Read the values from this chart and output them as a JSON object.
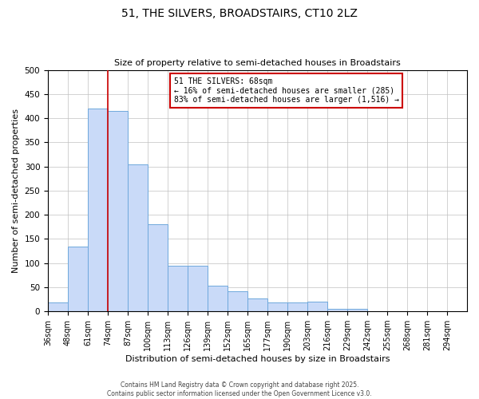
{
  "title": "51, THE SILVERS, BROADSTAIRS, CT10 2LZ",
  "subtitle": "Size of property relative to semi-detached houses in Broadstairs",
  "xlabel": "Distribution of semi-detached houses by size in Broadstairs",
  "ylabel": "Number of semi-detached properties",
  "bin_labels": [
    "36sqm",
    "48sqm",
    "61sqm",
    "74sqm",
    "87sqm",
    "100sqm",
    "113sqm",
    "126sqm",
    "139sqm",
    "152sqm",
    "165sqm",
    "177sqm",
    "190sqm",
    "203sqm",
    "216sqm",
    "229sqm",
    "242sqm",
    "255sqm",
    "268sqm",
    "281sqm",
    "294sqm"
  ],
  "bar_values": [
    18,
    135,
    420,
    415,
    305,
    180,
    95,
    95,
    53,
    42,
    27,
    18,
    18,
    20,
    6,
    6,
    0,
    0,
    0,
    0,
    0
  ],
  "bar_color": "#c9daf8",
  "bar_edge_color": "#6fa8dc",
  "vline_color": "#cc0000",
  "vline_x_bin_index": 2,
  "pct_smaller": 16,
  "pct_larger": 83,
  "count_smaller": 285,
  "count_larger": 1516,
  "annotation_box_color": "#ffffff",
  "annotation_box_edge": "#cc0000",
  "ylim": [
    0,
    500
  ],
  "n_bins": 21,
  "footer_line1": "Contains HM Land Registry data © Crown copyright and database right 2025.",
  "footer_line2": "Contains public sector information licensed under the Open Government Licence v3.0.",
  "background_color": "#ffffff",
  "title_fontsize": 10,
  "subtitle_fontsize": 8,
  "tick_fontsize": 7,
  "ylabel_fontsize": 8,
  "xlabel_fontsize": 8,
  "footer_fontsize": 5.5,
  "ann_fontsize": 7
}
